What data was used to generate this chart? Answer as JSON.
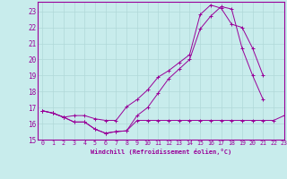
{
  "xlabel": "Windchill (Refroidissement éolien,°C)",
  "background_color": "#c8ecec",
  "grid_color": "#b0d8d8",
  "line_color": "#990099",
  "xlim": [
    -0.5,
    23
  ],
  "ylim": [
    15,
    23.6
  ],
  "yticks": [
    15,
    16,
    17,
    18,
    19,
    20,
    21,
    22,
    23
  ],
  "xticks": [
    0,
    1,
    2,
    3,
    4,
    5,
    6,
    7,
    8,
    9,
    10,
    11,
    12,
    13,
    14,
    15,
    16,
    17,
    18,
    19,
    20,
    21,
    22,
    23
  ],
  "line1_x": [
    0,
    1,
    2,
    3,
    4,
    5,
    6,
    7,
    8,
    9,
    10,
    11,
    12,
    13,
    14,
    15,
    16,
    17,
    18,
    19,
    20,
    21,
    22,
    23
  ],
  "line1_y": [
    16.8,
    16.65,
    16.4,
    16.1,
    16.1,
    15.65,
    15.4,
    15.5,
    15.55,
    16.2,
    16.2,
    16.2,
    16.2,
    16.2,
    16.2,
    16.2,
    16.2,
    16.2,
    16.2,
    16.2,
    16.2,
    16.2,
    16.2,
    16.5
  ],
  "line2_x": [
    0,
    1,
    2,
    3,
    4,
    5,
    6,
    7,
    8,
    9,
    10,
    11,
    12,
    13,
    14,
    15,
    16,
    17,
    18,
    19,
    20,
    21,
    22,
    23
  ],
  "line2_y": [
    16.8,
    16.65,
    16.4,
    16.1,
    16.1,
    15.65,
    15.4,
    15.5,
    15.55,
    16.5,
    17.0,
    17.9,
    18.8,
    19.4,
    20.0,
    21.9,
    22.7,
    23.3,
    23.15,
    20.7,
    19.0,
    17.5,
    null,
    null
  ],
  "line3_x": [
    0,
    1,
    2,
    3,
    4,
    5,
    6,
    7,
    8,
    9,
    10,
    11,
    12,
    13,
    14,
    15,
    16,
    17,
    18,
    19,
    20,
    21,
    22,
    23
  ],
  "line3_y": [
    16.8,
    16.65,
    16.4,
    16.5,
    16.5,
    16.3,
    16.2,
    16.2,
    17.05,
    17.5,
    18.1,
    18.9,
    19.3,
    19.8,
    20.3,
    22.8,
    23.4,
    23.2,
    22.2,
    22.0,
    20.7,
    19.0,
    null,
    null
  ]
}
